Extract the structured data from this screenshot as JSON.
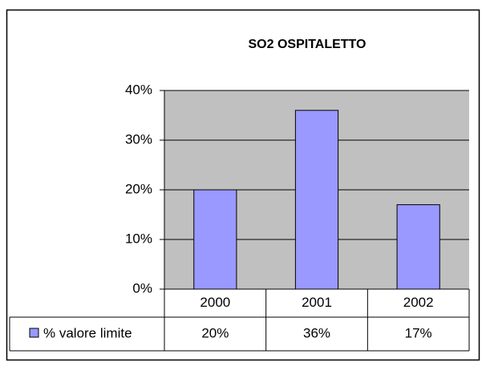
{
  "chart_data": {
    "type": "bar",
    "title": "SO2 OSPITALETTO",
    "categories": [
      "2000",
      "2001",
      "2002"
    ],
    "series": [
      {
        "name": "% valore limite",
        "color": "#9999ff",
        "values": [
          20,
          36,
          17
        ],
        "value_labels": [
          "20%",
          "36%",
          "17%"
        ]
      }
    ],
    "ylim": [
      0,
      40
    ],
    "yticks": [
      {
        "value": 0,
        "label": "0%"
      },
      {
        "value": 10,
        "label": "10%"
      },
      {
        "value": 20,
        "label": "20%"
      },
      {
        "value": 30,
        "label": "30%"
      },
      {
        "value": 40,
        "label": "40%"
      }
    ],
    "grid": true
  }
}
